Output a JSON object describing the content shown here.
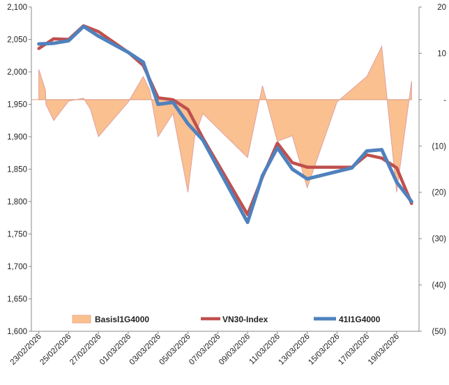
{
  "chart_data": {
    "type": "line",
    "categories": [
      "23/02/2026",
      "24/02/2026",
      "25/02/2026",
      "26/02/2026",
      "27/02/2026",
      "28/02/2026",
      "01/03/2026",
      "02/03/2026",
      "03/03/2026",
      "04/03/2026",
      "05/03/2026",
      "06/03/2026",
      "07/03/2026",
      "08/03/2026",
      "09/03/2026",
      "10/03/2026",
      "11/03/2026",
      "12/03/2026",
      "13/03/2026",
      "14/03/2026",
      "15/03/2026",
      "16/03/2026",
      "17/03/2026",
      "18/03/2026",
      "19/03/2026",
      "20/03/2026"
    ],
    "x_tick_labels": [
      "23/02/2026",
      "25/02/2026",
      "27/02/2026",
      "01/03/2026",
      "03/03/2026",
      "05/03/2026",
      "07/03/2026",
      "09/03/2026",
      "11/03/2026",
      "13/03/2026",
      "15/03/2026",
      "17/03/2026",
      "19/03/2026"
    ],
    "left_axis": {
      "min": 1600,
      "max": 2100,
      "step": 50,
      "tick_labels": [
        "1,600",
        "1,650",
        "1,700",
        "1,750",
        "1,800",
        "1,850",
        "1,900",
        "1,950",
        "2,000",
        "2,050",
        "2,100"
      ]
    },
    "right_axis": {
      "min": -50,
      "max": 20,
      "step": 10,
      "tick_labels": [
        "(50)",
        "(40)",
        "(30)",
        "(20)",
        "(10)",
        "-",
        "10",
        "20"
      ]
    },
    "basis_points": [
      {
        "date": "23/02/2026",
        "value": 6.5
      },
      {
        "date": "23/02/2026",
        "value": 2
      },
      {
        "date": "23/02/2026",
        "value": -1
      },
      {
        "date": "24/02/2026",
        "value": -4.5
      },
      {
        "date": "25/02/2026",
        "value": -0.3
      },
      {
        "date": "26/02/2026",
        "value": 0.3
      },
      {
        "date": "26/02/2026",
        "value": -2
      },
      {
        "date": "27/02/2026",
        "value": -8
      },
      {
        "date": "01/03/2026",
        "value": -0.5
      },
      {
        "date": "02/03/2026",
        "value": 5
      },
      {
        "date": "02/03/2026",
        "value": 2
      },
      {
        "date": "03/03/2026",
        "value": -8
      },
      {
        "date": "04/03/2026",
        "value": -3
      },
      {
        "date": "05/03/2026",
        "value": -20
      },
      {
        "date": "05/03/2026",
        "value": -8
      },
      {
        "date": "06/03/2026",
        "value": -3
      },
      {
        "date": "09/03/2026",
        "value": -12.5
      },
      {
        "date": "10/03/2026",
        "value": 3
      },
      {
        "date": "11/03/2026",
        "value": -9
      },
      {
        "date": "12/03/2026",
        "value": -7.8
      },
      {
        "date": "13/03/2026",
        "value": -19
      },
      {
        "date": "15/03/2026",
        "value": -0.5
      },
      {
        "date": "17/03/2026",
        "value": 5
      },
      {
        "date": "18/03/2026",
        "value": 11.5
      },
      {
        "date": "19/03/2026",
        "value": -20
      },
      {
        "date": "20/03/2026",
        "value": 4
      }
    ],
    "series": [
      {
        "name": "Basisl1G4000",
        "kind": "area",
        "axis": "right",
        "color": "#FAC090",
        "edge_color": "#E0A0A0"
      },
      {
        "name": "VN30-Index",
        "kind": "line",
        "axis": "left",
        "color": "#C0504D",
        "points": [
          {
            "date": "23/02/2026",
            "value": 2036
          },
          {
            "date": "24/02/2026",
            "value": 2051
          },
          {
            "date": "25/02/2026",
            "value": 2050
          },
          {
            "date": "26/02/2026",
            "value": 2071
          },
          {
            "date": "27/02/2026",
            "value": 2062
          },
          {
            "date": "01/03/2026",
            "value": 2030
          },
          {
            "date": "02/03/2026",
            "value": 2010
          },
          {
            "date": "03/03/2026",
            "value": 1960
          },
          {
            "date": "04/03/2026",
            "value": 1957
          },
          {
            "date": "05/03/2026",
            "value": 1942
          },
          {
            "date": "06/03/2026",
            "value": 1898
          },
          {
            "date": "09/03/2026",
            "value": 1780
          },
          {
            "date": "10/03/2026",
            "value": 1838
          },
          {
            "date": "11/03/2026",
            "value": 1890
          },
          {
            "date": "12/03/2026",
            "value": 1860
          },
          {
            "date": "13/03/2026",
            "value": 1853
          },
          {
            "date": "16/03/2026",
            "value": 1853
          },
          {
            "date": "17/03/2026",
            "value": 1872
          },
          {
            "date": "18/03/2026",
            "value": 1867
          },
          {
            "date": "19/03/2026",
            "value": 1852
          },
          {
            "date": "20/03/2026",
            "value": 1797
          }
        ]
      },
      {
        "name": "41I1G4000",
        "kind": "line",
        "axis": "left",
        "color": "#4F81BD",
        "points": [
          {
            "date": "23/02/2026",
            "value": 2043
          },
          {
            "date": "24/02/2026",
            "value": 2044
          },
          {
            "date": "25/02/2026",
            "value": 2048
          },
          {
            "date": "26/02/2026",
            "value": 2070
          },
          {
            "date": "27/02/2026",
            "value": 2055
          },
          {
            "date": "01/03/2026",
            "value": 2030
          },
          {
            "date": "02/03/2026",
            "value": 2015
          },
          {
            "date": "03/03/2026",
            "value": 1950
          },
          {
            "date": "04/03/2026",
            "value": 1953
          },
          {
            "date": "05/03/2026",
            "value": 1920
          },
          {
            "date": "06/03/2026",
            "value": 1895
          },
          {
            "date": "09/03/2026",
            "value": 1768
          },
          {
            "date": "10/03/2026",
            "value": 1840
          },
          {
            "date": "11/03/2026",
            "value": 1883
          },
          {
            "date": "12/03/2026",
            "value": 1850
          },
          {
            "date": "13/03/2026",
            "value": 1835
          },
          {
            "date": "16/03/2026",
            "value": 1852
          },
          {
            "date": "17/03/2026",
            "value": 1878
          },
          {
            "date": "18/03/2026",
            "value": 1880
          },
          {
            "date": "19/03/2026",
            "value": 1830
          },
          {
            "date": "20/03/2026",
            "value": 1800
          }
        ]
      }
    ],
    "legend": {
      "position": "bottom-inside",
      "items": [
        "Basisl1G4000",
        "VN30-Index",
        "41I1G4000"
      ]
    },
    "grid": false
  }
}
